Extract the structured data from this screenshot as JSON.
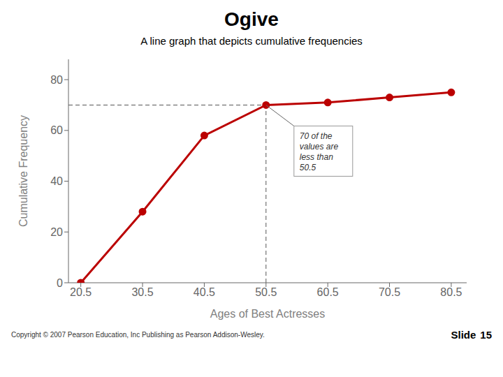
{
  "chart_data": {
    "type": "line",
    "title": "Ogive",
    "subtitle": "A line graph that depicts cumulative frequencies",
    "x": [
      20.5,
      30.5,
      40.5,
      50.5,
      60.5,
      70.5,
      80.5
    ],
    "values": [
      0,
      28,
      58,
      70,
      71,
      73,
      75
    ],
    "color": "#bb0000",
    "marker": "circle",
    "xlabel": "Ages of Best Actresses",
    "ylabel": "Cumulative Frequency",
    "xlim": [
      18.5,
      83
    ],
    "ylim": [
      0,
      88
    ],
    "xticks": [
      20.5,
      30.5,
      40.5,
      50.5,
      60.5,
      70.5,
      80.5
    ],
    "yticks": [
      0,
      20,
      40,
      60,
      80
    ],
    "grid": false,
    "annotations": [
      {
        "text": "70 of the\nvalues are\nless than\n50.5",
        "x": 50.5,
        "y": 70
      },
      {
        "text": "Copyright © 2007 Pearson Education, Inc Publishing as Pearson Addison-Wesley."
      },
      {
        "text": "Slide"
      },
      {
        "text": "15"
      }
    ]
  }
}
